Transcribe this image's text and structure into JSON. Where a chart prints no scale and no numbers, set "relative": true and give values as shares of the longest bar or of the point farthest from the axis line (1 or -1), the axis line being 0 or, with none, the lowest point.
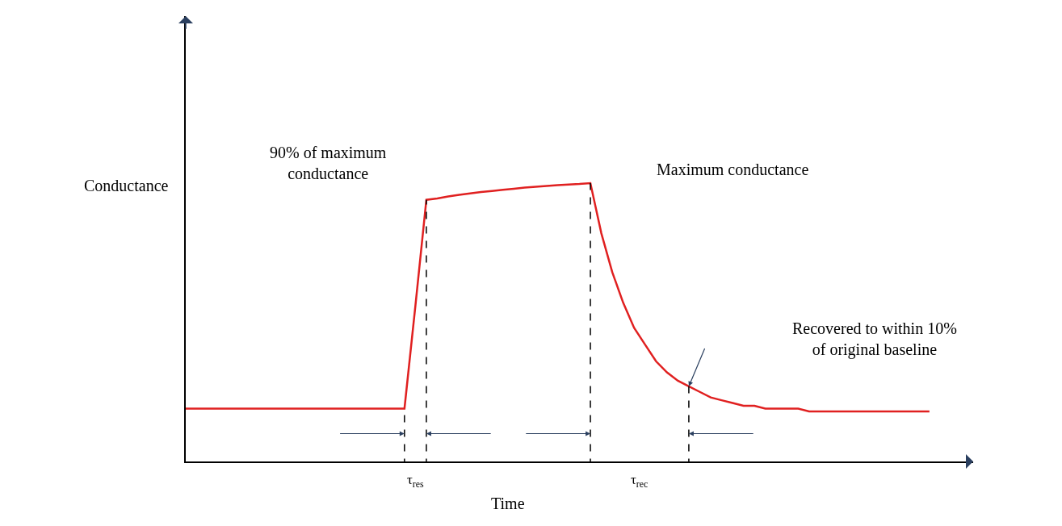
{
  "chart_data": {
    "type": "line",
    "relative": true,
    "xlabel": "Time",
    "ylabel": "Conductance",
    "categories": [
      null,
      null,
      null,
      null,
      null,
      null,
      null,
      null,
      null,
      null,
      null,
      null,
      null,
      null,
      null,
      null,
      null,
      null,
      null,
      null,
      null,
      null,
      null,
      null,
      null,
      null,
      null,
      null,
      null,
      null,
      null,
      null,
      null,
      null,
      null,
      null,
      null,
      null,
      null,
      null,
      null,
      null,
      null,
      null,
      null,
      null,
      null,
      null,
      null,
      null,
      null,
      null,
      null,
      null,
      null,
      null,
      null,
      null,
      null,
      null,
      null,
      null,
      null,
      null,
      null,
      null,
      null,
      null,
      null
    ],
    "series": [
      {
        "color": "#e02020",
        "values": [
          0.19,
          0.19,
          0.19,
          0.19,
          0.19,
          0.19,
          0.19,
          0.19,
          0.19,
          0.19,
          0.19,
          0.19,
          0.19,
          0.19,
          0.19,
          0.19,
          0.19,
          0.19,
          0.19,
          0.19,
          0.19,
          0.56,
          0.94,
          0.945,
          0.952,
          0.958,
          0.963,
          0.968,
          0.972,
          0.976,
          0.98,
          0.984,
          0.987,
          0.99,
          0.993,
          0.995,
          0.997,
          1.0,
          0.82,
          0.68,
          0.57,
          0.48,
          0.42,
          0.36,
          0.32,
          0.29,
          0.27,
          0.25,
          0.23,
          0.22,
          0.21,
          0.2,
          0.2,
          0.19,
          0.19,
          0.19,
          0.19,
          0.18,
          0.18,
          0.18,
          0.18,
          0.18,
          0.18,
          0.18,
          0.18,
          0.18,
          0.18,
          0.18,
          0.18
        ]
      }
    ],
    "annotations": [
      "90% of maximum\nconductance",
      "Maximum conductance",
      "Recovered to within 10%\nof original baseline",
      "τ$_{res}$",
      "τ$_{rec}$"
    ],
    "marker": "none",
    "line_style": "solid"
  }
}
